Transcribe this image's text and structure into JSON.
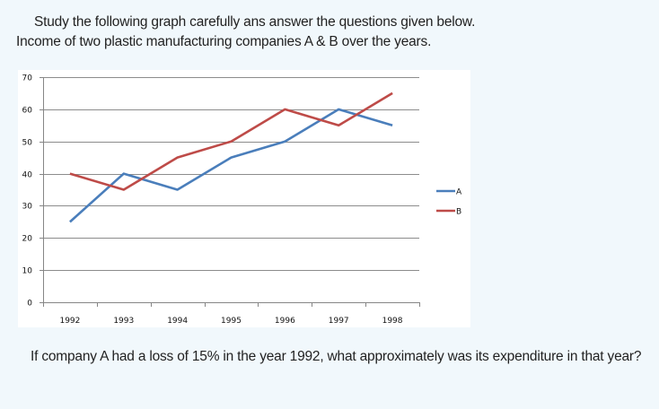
{
  "intro": {
    "line1": "Study the following graph carefully ans answer the questions given below.",
    "line2": "Income of two plastic manufacturing companies A & B over the years."
  },
  "question": "If company A had a loss of 15% in the year 1992, what approximately was its expenditure in that year?",
  "chart_data": {
    "type": "line",
    "title": "Income of two plastic manufacturing companies A & B over the years.",
    "xlabel": "",
    "ylabel": "",
    "categories": [
      "1992",
      "1993",
      "1994",
      "1995",
      "1996",
      "1997",
      "1998"
    ],
    "ylim": [
      0,
      70
    ],
    "yticks": [
      0,
      10,
      20,
      30,
      40,
      50,
      60,
      70
    ],
    "grid": true,
    "legend_position": "right",
    "series": [
      {
        "name": "A",
        "color": "#4a7ebb",
        "values": [
          25,
          40,
          35,
          45,
          50,
          60,
          55
        ]
      },
      {
        "name": "B",
        "color": "#be4b48",
        "values": [
          40,
          35,
          45,
          50,
          60,
          55,
          65
        ]
      }
    ]
  }
}
